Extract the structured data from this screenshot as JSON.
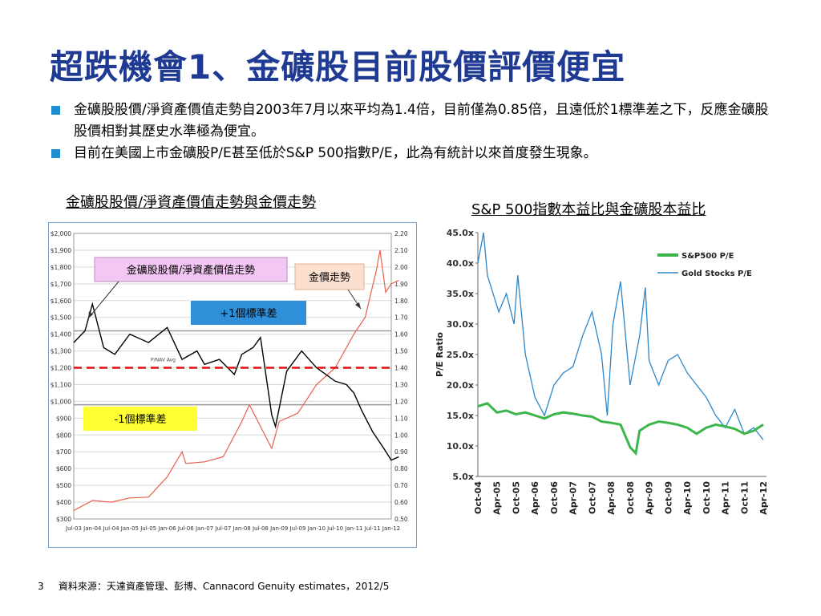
{
  "title": "超跌機會1、金礦股目前股價評價便宜",
  "bullets": [
    "金礦股股價/淨資產價值走勢自2003年7月以來平均為1.4倍，目前僅為0.85倍，且遠低於1標準差之下，反應金礦股股價相對其歷史水準極為便宜。",
    "目前在美國上市金礦股P/E甚至低於S&P 500指數P/E，此為有統計以來首度發生現象。"
  ],
  "footer": {
    "page_number": "3",
    "source": "資料來源：天達資產管理、彭博、Cannacord Genuity estimates，2012/5"
  },
  "colors": {
    "title": "#1f3a93",
    "bullet": "#1f8ed0",
    "gold": "#e8604c",
    "pnav": "#000000",
    "mean": "#dd1111",
    "sp500": "#3cb54a",
    "gold_pe": "#2e86c8"
  },
  "chart_data": [
    {
      "type": "line",
      "caption": "金礦股股價/淨資產價值走勢與金價走勢",
      "x_ticks": [
        "Jul-03",
        "Jan-04",
        "Jul-04",
        "Jan-05",
        "Jul-05",
        "Jan-06",
        "Jul-06",
        "Jan-07",
        "Jul-07",
        "Jan-08",
        "Jul-08",
        "Jan-09",
        "Jul-09",
        "Jan-10",
        "Jul-10",
        "Jan-11",
        "Jul-11",
        "Jan-12"
      ],
      "left_axis": {
        "ticks": [
          "$2,000",
          "$1,900",
          "$1,800",
          "$1,700",
          "$1,600",
          "$1,500",
          "$1,400",
          "$1,300",
          "$1,200",
          "$1,100",
          "$1,000",
          "$900",
          "$800",
          "$700",
          "$600",
          "$500",
          "$400",
          "$300"
        ],
        "range": [
          300,
          2000
        ]
      },
      "right_axis": {
        "ticks": [
          "2.20",
          "2.10",
          "2.00",
          "1.90",
          "1.80",
          "1.70",
          "1.60",
          "1.50",
          "1.40",
          "1.30",
          "1.20",
          "1.10",
          "1.00",
          "0.90",
          "0.80",
          "0.70",
          "0.60",
          "0.50"
        ],
        "range": [
          0.5,
          2.2
        ]
      },
      "series": [
        {
          "name": "金價走勢",
          "axis": "left",
          "x": [
            2003.5,
            2004.0,
            2004.5,
            2005.0,
            2005.5,
            2006.0,
            2006.4,
            2006.5,
            2007.0,
            2007.5,
            2008.0,
            2008.2,
            2008.8,
            2009.0,
            2009.5,
            2010.0,
            2010.5,
            2011.0,
            2011.3,
            2011.6,
            2011.7,
            2011.85,
            2012.0,
            2012.2
          ],
          "y": [
            350,
            410,
            400,
            425,
            430,
            550,
            700,
            630,
            640,
            670,
            880,
            980,
            720,
            880,
            930,
            1100,
            1200,
            1400,
            1500,
            1780,
            1900,
            1650,
            1700,
            1720
          ]
        },
        {
          "name": "金礦股股價/淨資產價值走勢",
          "axis": "right",
          "x": [
            2003.5,
            2003.8,
            2004.0,
            2004.3,
            2004.6,
            2005.0,
            2005.5,
            2006.0,
            2006.4,
            2006.8,
            2007.0,
            2007.4,
            2007.8,
            2008.0,
            2008.3,
            2008.5,
            2008.8,
            2008.9,
            2009.2,
            2009.6,
            2010.0,
            2010.5,
            2010.8,
            2011.0,
            2011.2,
            2011.5,
            2011.8,
            2012.0,
            2012.2
          ],
          "y": [
            1.55,
            1.62,
            1.78,
            1.52,
            1.48,
            1.6,
            1.55,
            1.64,
            1.45,
            1.5,
            1.42,
            1.45,
            1.36,
            1.48,
            1.52,
            1.58,
            1.12,
            1.05,
            1.38,
            1.5,
            1.4,
            1.32,
            1.3,
            1.25,
            1.15,
            1.02,
            0.92,
            0.85,
            0.87
          ]
        }
      ],
      "mean_line": {
        "label": "P/NAV Avg",
        "value": 1.4
      },
      "plus_1sd": {
        "label": "+1個標準差",
        "value": 1.62
      },
      "minus_1sd": {
        "label": "-1個標準差",
        "value": 1.18
      },
      "annotations": {
        "pnav": "金礦股股價/淨資產價值走勢",
        "gold": "金價走勢"
      }
    },
    {
      "type": "line",
      "caption": "S&P 500指數本益比與金礦股本益比",
      "ylabel": "P/E Ratio",
      "ylim": [
        5,
        45
      ],
      "y_ticks": [
        "45.0x",
        "40.0x",
        "35.0x",
        "30.0x",
        "25.0x",
        "20.0x",
        "15.0x",
        "10.0x",
        "5.0x"
      ],
      "x_ticks": [
        "Oct-04",
        "Apr-05",
        "Oct-05",
        "Apr-06",
        "Oct-06",
        "Apr-07",
        "Oct-07",
        "Apr-08",
        "Oct-08",
        "Apr-09",
        "Oct-09",
        "Apr-10",
        "Oct-10",
        "Apr-11",
        "Oct-11",
        "Apr-12"
      ],
      "legend": "top-right",
      "series": [
        {
          "name": "S&P500 P/E",
          "x": [
            2004.75,
            2005.0,
            2005.25,
            2005.5,
            2005.75,
            2006.0,
            2006.25,
            2006.5,
            2006.75,
            2007.0,
            2007.25,
            2007.5,
            2007.75,
            2008.0,
            2008.25,
            2008.5,
            2008.75,
            2008.9,
            2009.0,
            2009.25,
            2009.5,
            2009.75,
            2010.0,
            2010.25,
            2010.5,
            2010.75,
            2011.0,
            2011.25,
            2011.5,
            2011.75,
            2012.0,
            2012.25
          ],
          "y": [
            16.5,
            17.0,
            15.5,
            15.8,
            15.2,
            15.5,
            15.0,
            14.5,
            15.2,
            15.5,
            15.3,
            15.0,
            14.8,
            14.0,
            13.8,
            13.5,
            9.8,
            8.8,
            12.5,
            13.5,
            14.0,
            13.8,
            13.5,
            13.0,
            12.0,
            13.0,
            13.5,
            13.2,
            12.8,
            12.0,
            12.5,
            13.5
          ]
        },
        {
          "name": "Gold Stocks P/E",
          "x": [
            2004.75,
            2004.9,
            2005.0,
            2005.15,
            2005.3,
            2005.5,
            2005.7,
            2005.8,
            2006.0,
            2006.25,
            2006.5,
            2006.75,
            2007.0,
            2007.25,
            2007.5,
            2007.75,
            2008.0,
            2008.15,
            2008.3,
            2008.5,
            2008.75,
            2009.0,
            2009.15,
            2009.25,
            2009.5,
            2009.75,
            2010.0,
            2010.25,
            2010.5,
            2010.75,
            2011.0,
            2011.25,
            2011.5,
            2011.75,
            2012.0,
            2012.25
          ],
          "y": [
            40.0,
            45.0,
            38.0,
            35.0,
            32.0,
            35.0,
            30.0,
            38.0,
            25.0,
            18.0,
            15.0,
            20.0,
            22.0,
            23.0,
            28.0,
            32.0,
            25.0,
            15.0,
            30.0,
            37.0,
            20.0,
            28.0,
            36.0,
            24.0,
            20.0,
            24.0,
            25.0,
            22.0,
            20.0,
            18.0,
            15.0,
            13.0,
            16.0,
            12.0,
            13.0,
            11.0
          ]
        }
      ]
    }
  ]
}
